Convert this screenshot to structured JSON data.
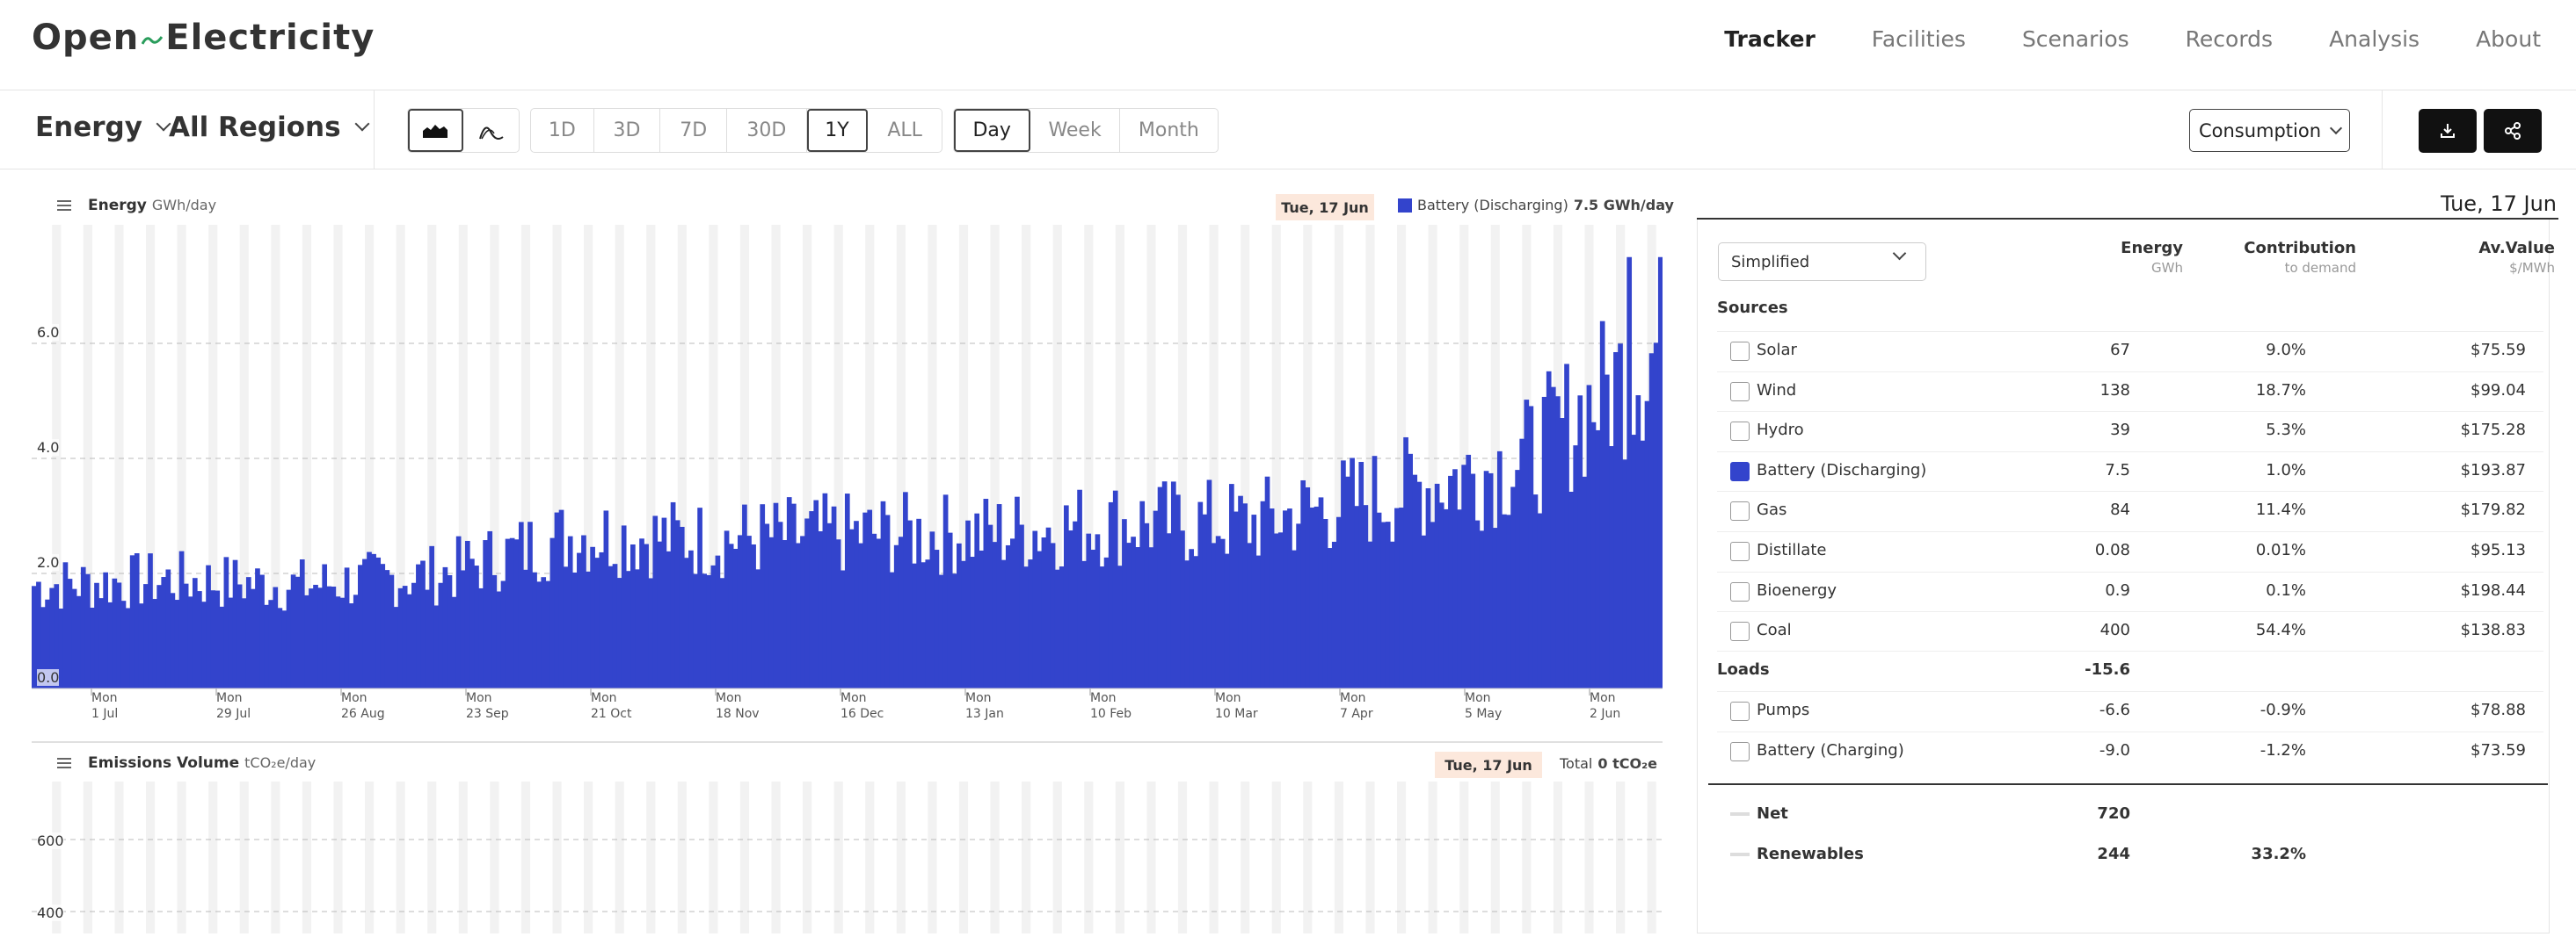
{
  "header": {
    "logo_left": "Open",
    "logo_right": "Electricity",
    "nav": [
      "Tracker",
      "Facilities",
      "Scenarios",
      "Records",
      "Analysis",
      "About"
    ],
    "active_nav": "Tracker"
  },
  "toolbar": {
    "metric": "Energy",
    "region": "All Regions",
    "ranges": [
      "1D",
      "3D",
      "7D",
      "30D",
      "1Y",
      "ALL"
    ],
    "selected_range": "1Y",
    "intervals": [
      "Day",
      "Week",
      "Month"
    ],
    "selected_interval": "Day",
    "view": "Consumption",
    "icons": [
      "area-chart-icon",
      "line-chart-icon",
      "download-icon",
      "share-icon"
    ]
  },
  "energy_panel": {
    "title": "Energy",
    "unit": "GWh/day",
    "date": "Tue, 17 Jun",
    "legend_name": "Battery (Discharging)",
    "legend_value": "7.5 GWh/day"
  },
  "emissions_panel": {
    "title": "Emissions Volume",
    "unit": "tCO₂e/day",
    "date": "Tue, 17 Jun",
    "total_label": "Total",
    "total_value": "0 tCO₂e",
    "y_ticks": [
      "600",
      "400"
    ]
  },
  "chart_data": {
    "type": "bar",
    "series_name": "Battery (Discharging)",
    "color": "#3344cc",
    "ylabel": "GWh/day",
    "ylim": [
      0,
      8
    ],
    "y_ticks": [
      "6.0",
      "4.0",
      "2.0",
      "0.0"
    ],
    "x_ticks": [
      {
        "day": "Mon",
        "date": "1 Jul"
      },
      {
        "day": "Mon",
        "date": "29 Jul"
      },
      {
        "day": "Mon",
        "date": "26 Aug"
      },
      {
        "day": "Mon",
        "date": "23 Sep"
      },
      {
        "day": "Mon",
        "date": "21 Oct"
      },
      {
        "day": "Mon",
        "date": "18 Nov"
      },
      {
        "day": "Mon",
        "date": "16 Dec"
      },
      {
        "day": "Mon",
        "date": "13 Jan"
      },
      {
        "day": "Mon",
        "date": "10 Feb"
      },
      {
        "day": "Mon",
        "date": "10 Mar"
      },
      {
        "day": "Mon",
        "date": "7 Apr"
      },
      {
        "day": "Mon",
        "date": "5 May"
      },
      {
        "day": "Mon",
        "date": "2 Jun"
      }
    ],
    "x_first": "2024-06-18",
    "x_last": "2025-06-17",
    "trend_monthly": [
      {
        "month": "Jun",
        "value": 1.8
      },
      {
        "month": "Jul",
        "value": 1.9
      },
      {
        "month": "Aug",
        "value": 1.8
      },
      {
        "month": "Sep",
        "value": 2.0
      },
      {
        "month": "Oct",
        "value": 2.7
      },
      {
        "month": "Nov",
        "value": 2.6
      },
      {
        "month": "Dec",
        "value": 2.7
      },
      {
        "month": "Jan",
        "value": 2.7
      },
      {
        "month": "Feb",
        "value": 2.9
      },
      {
        "month": "Mar",
        "value": 2.9
      },
      {
        "month": "Apr",
        "value": 3.4
      },
      {
        "month": "May",
        "value": 4.0
      },
      {
        "month": "Jun",
        "value": 6.0
      }
    ],
    "last_value": 7.5,
    "peak_value": 7.5
  },
  "table": {
    "date": "Tue, 17 Jun",
    "mode": "Simplified",
    "columns": [
      {
        "title": "Energy",
        "sub": "GWh"
      },
      {
        "title": "Contribution",
        "sub": "to demand"
      },
      {
        "title": "Av.Value",
        "sub": "$/MWh"
      }
    ],
    "sources_label": "Sources",
    "sources": [
      {
        "name": "Solar",
        "energy": "67",
        "contribution": "9.0%",
        "value": "$75.59",
        "checked": false
      },
      {
        "name": "Wind",
        "energy": "138",
        "contribution": "18.7%",
        "value": "$99.04",
        "checked": false
      },
      {
        "name": "Hydro",
        "energy": "39",
        "contribution": "5.3%",
        "value": "$175.28",
        "checked": false
      },
      {
        "name": "Battery (Discharging)",
        "energy": "7.5",
        "contribution": "1.0%",
        "value": "$193.87",
        "checked": true
      },
      {
        "name": "Gas",
        "energy": "84",
        "contribution": "11.4%",
        "value": "$179.82",
        "checked": false
      },
      {
        "name": "Distillate",
        "energy": "0.08",
        "contribution": "0.01%",
        "value": "$95.13",
        "checked": false
      },
      {
        "name": "Bioenergy",
        "energy": "0.9",
        "contribution": "0.1%",
        "value": "$198.44",
        "checked": false
      },
      {
        "name": "Coal",
        "energy": "400",
        "contribution": "54.4%",
        "value": "$138.83",
        "checked": false
      }
    ],
    "loads_label": "Loads",
    "loads_total": "-15.6",
    "loads": [
      {
        "name": "Pumps",
        "energy": "-6.6",
        "contribution": "-0.9%",
        "value": "$78.88"
      },
      {
        "name": "Battery (Charging)",
        "energy": "-9.0",
        "contribution": "-1.2%",
        "value": "$73.59"
      }
    ],
    "net": {
      "name": "Net",
      "energy": "720"
    },
    "renewables": {
      "name": "Renewables",
      "energy": "244",
      "contribution": "33.2%"
    }
  }
}
